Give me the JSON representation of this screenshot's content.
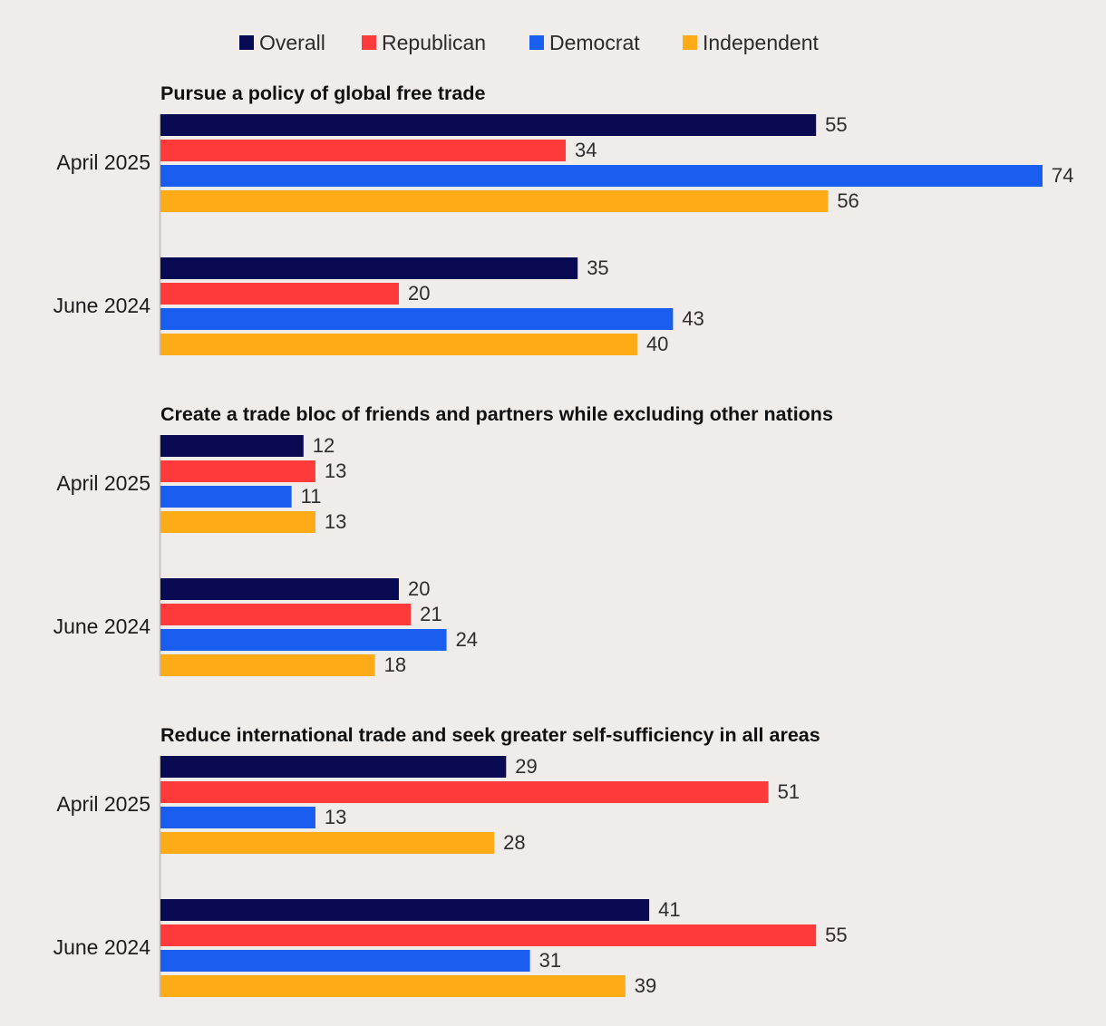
{
  "chart_data": {
    "type": "bar",
    "orientation": "horizontal",
    "legend": [
      {
        "name": "Overall",
        "color": "#0a0a52"
      },
      {
        "name": "Republican",
        "color": "#ff3a3a"
      },
      {
        "name": "Democrat",
        "color": "#1a5ef0"
      },
      {
        "name": "Independent",
        "color": "#ffab18"
      }
    ],
    "panels": [
      {
        "title": "Pursue a policy of global free trade",
        "groups": [
          {
            "label": "April 2025",
            "values": [
              55,
              34,
              74,
              56
            ]
          },
          {
            "label": "June 2024",
            "values": [
              35,
              20,
              43,
              40
            ]
          }
        ]
      },
      {
        "title": "Create a trade bloc of friends and partners while excluding other nations",
        "groups": [
          {
            "label": "April 2025",
            "values": [
              12,
              13,
              11,
              13
            ]
          },
          {
            "label": "June 2024",
            "values": [
              20,
              21,
              24,
              18
            ]
          }
        ]
      },
      {
        "title": "Reduce international trade and seek greater self-sufficiency in all areas",
        "groups": [
          {
            "label": "April 2025",
            "values": [
              29,
              51,
              13,
              28
            ]
          },
          {
            "label": "June 2024",
            "values": [
              41,
              55,
              31,
              39
            ]
          }
        ]
      }
    ],
    "xlim": [
      0,
      74
    ],
    "xlabel": "",
    "ylabel": "",
    "grid": false,
    "legend_position": "top-center"
  }
}
